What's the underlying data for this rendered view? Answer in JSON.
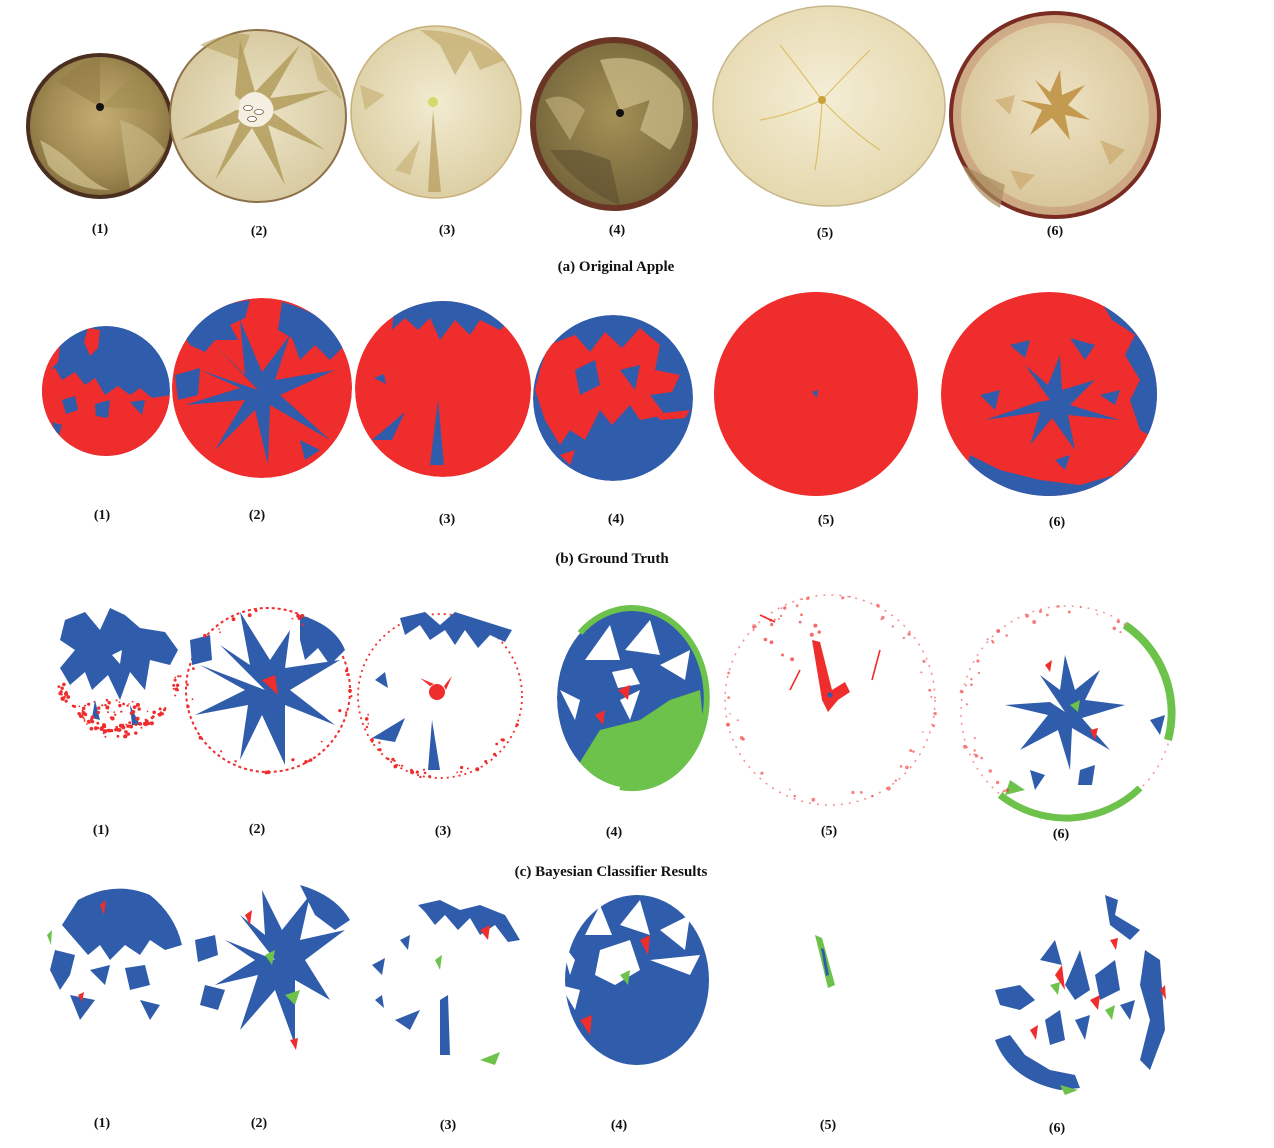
{
  "figure": {
    "rows": [
      {
        "caption": "(a) Original Apple",
        "labels": [
          "(1)",
          "(2)",
          "(3)",
          "(4)",
          "(5)",
          "(6)"
        ]
      },
      {
        "caption": "(b) Ground Truth",
        "labels": [
          "(1)",
          "(2)",
          "(3)",
          "(4)",
          "(5)",
          "(6)"
        ]
      },
      {
        "caption": "(c) Bayesian Classifier Results",
        "labels": [
          "(1)",
          "(2)",
          "(3)",
          "(4)",
          "(5)",
          "(6)"
        ]
      },
      {
        "labels": [
          "(1)",
          "(2)",
          "(3)",
          "(4)",
          "(5)",
          "(6)"
        ]
      }
    ]
  },
  "colors": {
    "red": "#ee2d2c",
    "blue": "#2f5cab",
    "green": "#6cc24a"
  }
}
